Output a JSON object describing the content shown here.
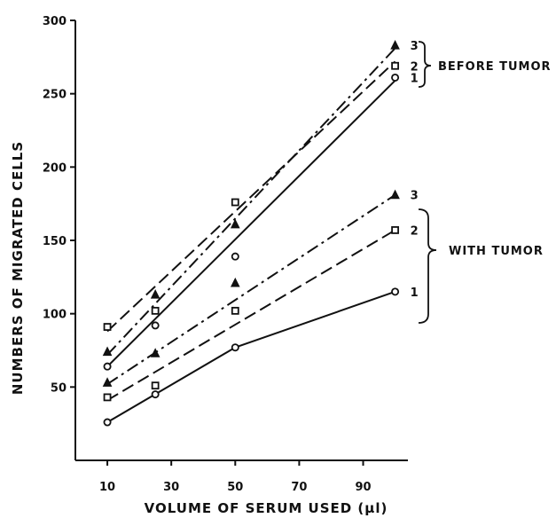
{
  "chart_data": {
    "type": "scatter",
    "xlabel": "VOLUME OF SERUM USED (μl)",
    "ylabel": "NUMBERS OF MIGRATED CELLS",
    "xlim": [
      0,
      104
    ],
    "ylim": [
      0,
      300
    ],
    "xticks": [
      "10",
      "30",
      "50",
      "70",
      "90"
    ],
    "yticks": [
      "50",
      "100",
      "150",
      "200",
      "250",
      "300"
    ],
    "grid": false,
    "groups": [
      {
        "label": "BEFORE TUMOR",
        "series_labels": [
          "3",
          "2",
          "1"
        ]
      },
      {
        "label": "WITH TUMOR",
        "series_labels": [
          "3",
          "2",
          "1"
        ]
      }
    ],
    "series": [
      {
        "group": "BEFORE TUMOR",
        "label": "3",
        "marker": "triangle",
        "dash": "dashdot",
        "points": [
          [
            10,
            74
          ],
          [
            25,
            113
          ],
          [
            50,
            161
          ],
          [
            100,
            283
          ]
        ],
        "fit": [
          [
            10,
            72
          ],
          [
            100,
            281
          ]
        ]
      },
      {
        "group": "BEFORE TUMOR",
        "label": "2",
        "marker": "square",
        "dash": "dashed",
        "points": [
          [
            10,
            91
          ],
          [
            25,
            102
          ],
          [
            50,
            176
          ],
          [
            100,
            269
          ]
        ],
        "fit": [
          [
            10,
            88
          ],
          [
            100,
            272
          ]
        ]
      },
      {
        "group": "BEFORE TUMOR",
        "label": "1",
        "marker": "circle",
        "dash": "solid",
        "points": [
          [
            10,
            64
          ],
          [
            25,
            92
          ],
          [
            50,
            139
          ],
          [
            100,
            261
          ]
        ],
        "fit": [
          [
            10,
            64
          ],
          [
            100,
            259
          ]
        ]
      },
      {
        "group": "WITH TUMOR",
        "label": "3",
        "marker": "triangle",
        "dash": "dashdot",
        "points": [
          [
            10,
            53
          ],
          [
            25,
            73
          ],
          [
            50,
            121
          ],
          [
            100,
            181
          ]
        ],
        "fit": [
          [
            10,
            52
          ],
          [
            100,
            181
          ]
        ]
      },
      {
        "group": "WITH TUMOR",
        "label": "2",
        "marker": "square",
        "dash": "dashed",
        "points": [
          [
            10,
            43
          ],
          [
            25,
            51
          ],
          [
            50,
            102
          ],
          [
            100,
            157
          ]
        ],
        "fit": [
          [
            10,
            41
          ],
          [
            100,
            157
          ]
        ]
      },
      {
        "group": "WITH TUMOR",
        "label": "1",
        "marker": "circle",
        "dash": "solid",
        "points": [
          [
            10,
            26
          ],
          [
            25,
            45
          ],
          [
            50,
            77
          ],
          [
            100,
            115
          ]
        ],
        "fit": [
          [
            10,
            26
          ],
          [
            50,
            77
          ],
          [
            100,
            115
          ]
        ]
      }
    ]
  }
}
